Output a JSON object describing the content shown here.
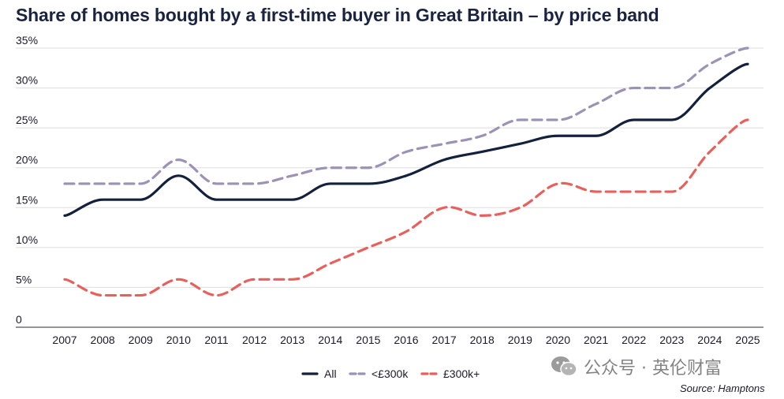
{
  "title": "Share of homes bought by a first-time buyer in Great Britain – by price band",
  "source": "Source: Hamptons",
  "watermark": "公众号 · 英伦财富",
  "chart_data": {
    "type": "line",
    "title": "Share of homes bought by a first-time buyer in Great Britain – by price band",
    "x": [
      "2007",
      "2008",
      "2009",
      "2010",
      "2011",
      "2012",
      "2013",
      "2014",
      "2015",
      "2016",
      "2017",
      "2018",
      "2019",
      "2020",
      "2021",
      "2022",
      "2023",
      "2024",
      "2025"
    ],
    "y_ticks": [
      "0",
      "5%",
      "10%",
      "15%",
      "20%",
      "25%",
      "30%",
      "35%"
    ],
    "ylim": [
      0,
      35
    ],
    "grid": "horizontal",
    "legend_position": "bottom-center",
    "series": [
      {
        "name": "All",
        "color": "#14213d",
        "style": "solid",
        "values": [
          14,
          16,
          16,
          19,
          16,
          16,
          16,
          18,
          18,
          19,
          21,
          22,
          23,
          24,
          24,
          26,
          26,
          30,
          33
        ]
      },
      {
        "name": "<£300k",
        "color": "#9b93b5",
        "style": "dashed",
        "values": [
          18,
          18,
          18,
          21,
          18,
          18,
          19,
          20,
          20,
          22,
          23,
          24,
          26,
          26,
          28,
          30,
          30,
          33,
          35
        ]
      },
      {
        "name": "£300k+",
        "color": "#e8605c",
        "style": "dashed",
        "values": [
          6,
          4,
          4,
          6,
          4,
          6,
          6,
          8,
          10,
          12,
          15,
          14,
          15,
          18,
          17,
          17,
          17,
          22,
          26
        ]
      }
    ]
  }
}
